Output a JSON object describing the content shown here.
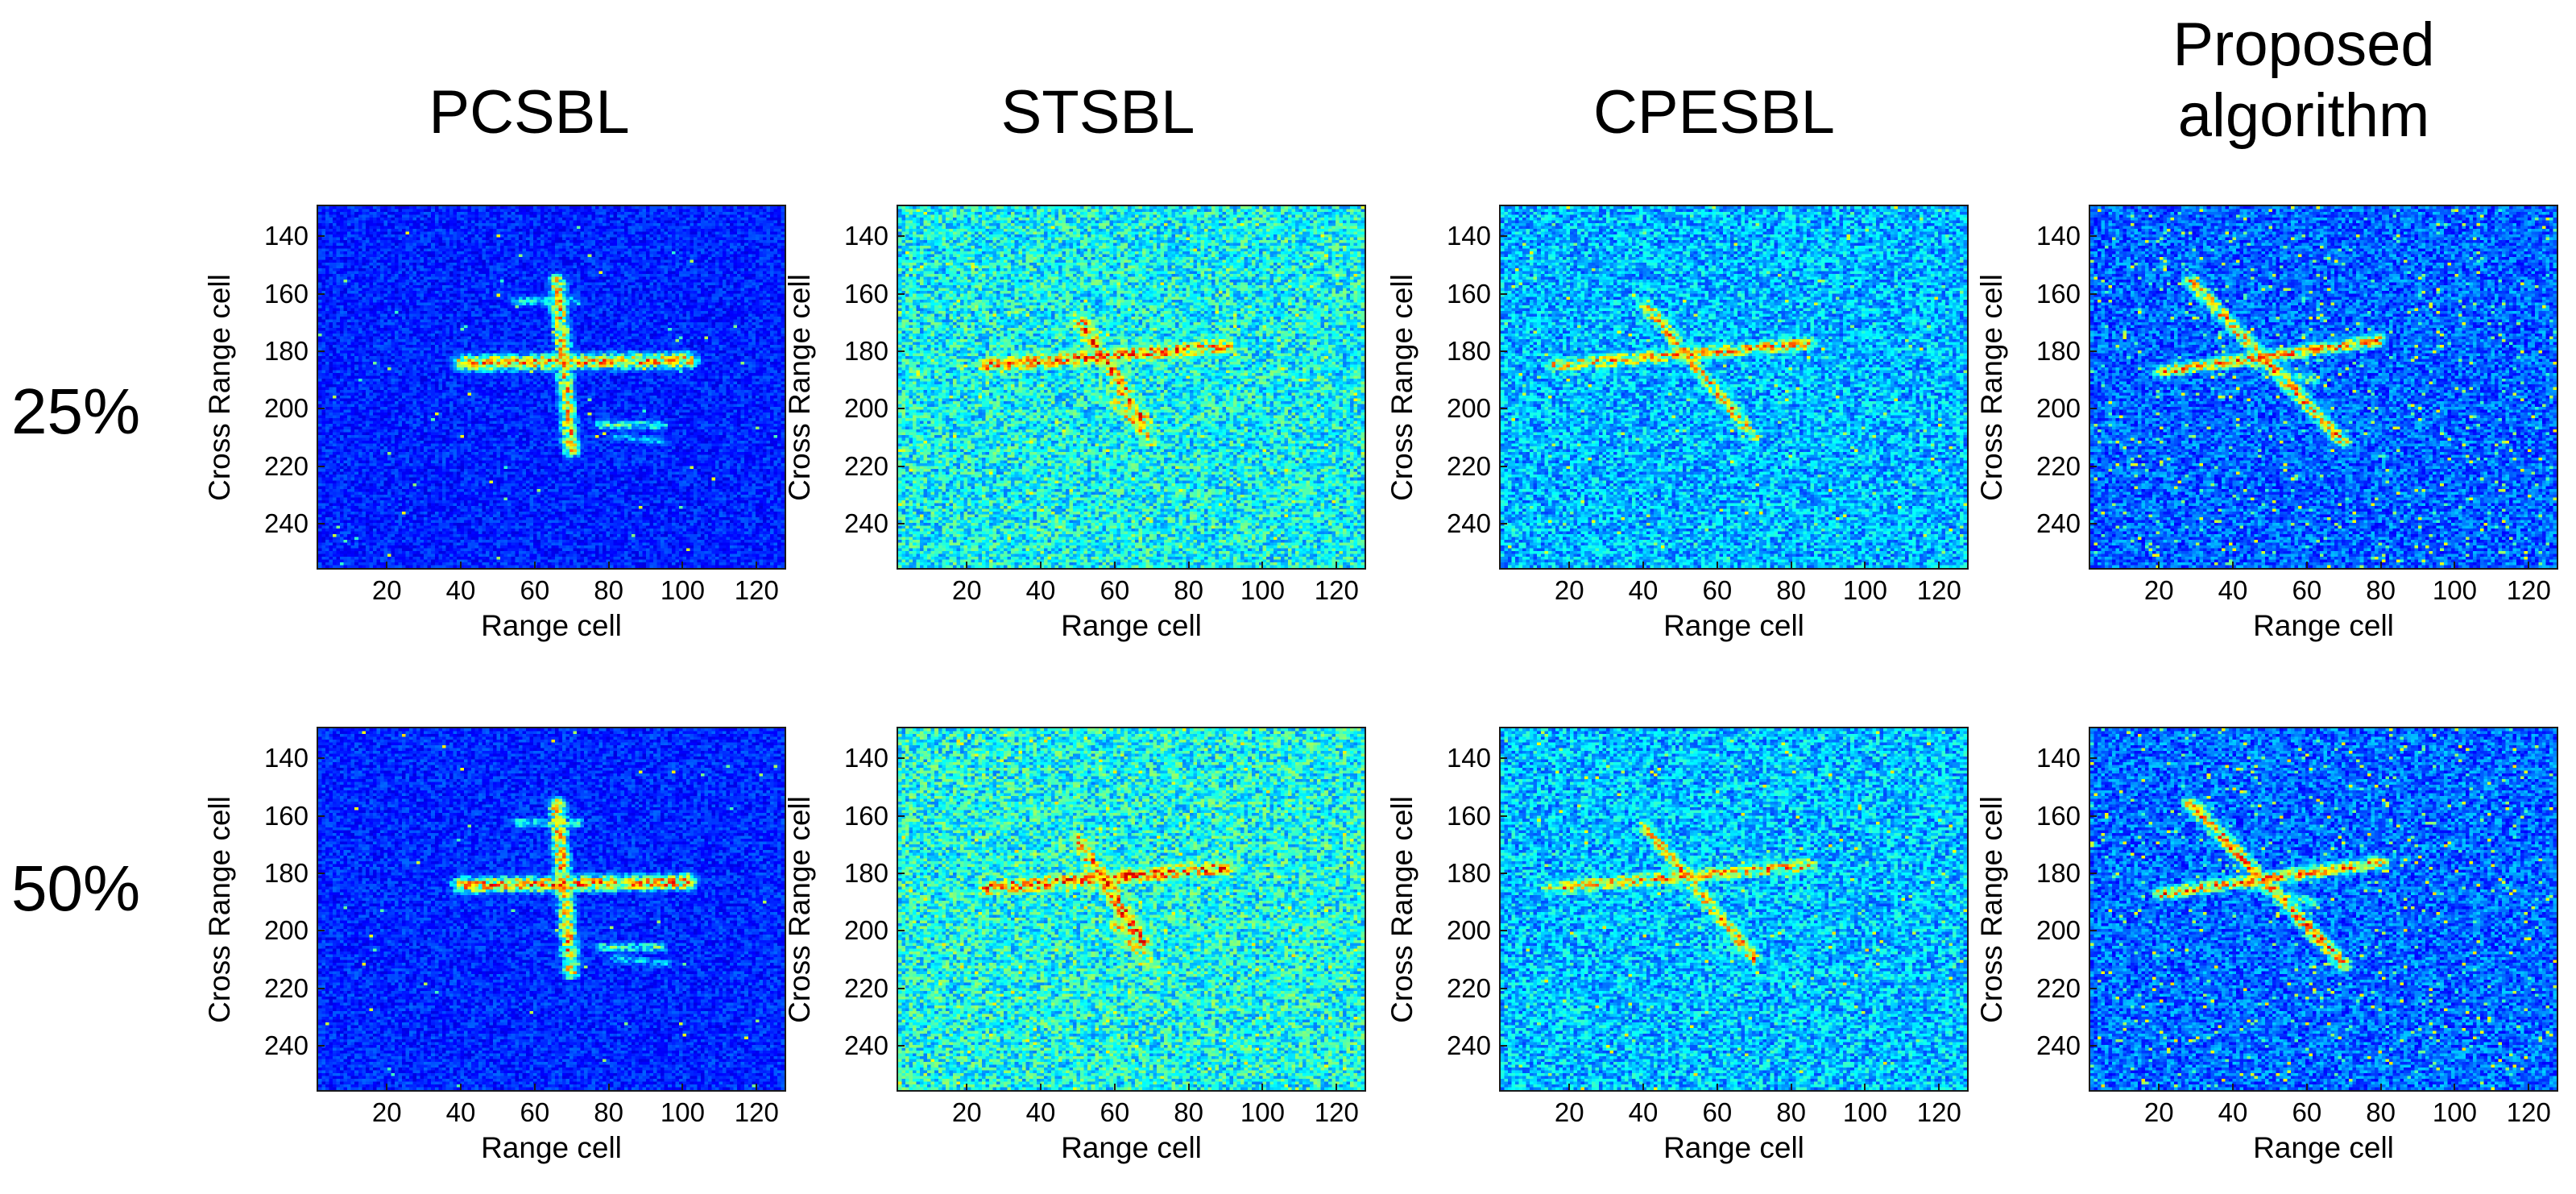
{
  "column_titles": [
    "PCSBL",
    "STSBL",
    "CPESBL",
    "Proposed\nalgorithm"
  ],
  "row_labels": [
    "25%",
    "50%"
  ],
  "chart_data": {
    "type": "heatmap",
    "xlabel": "Range cell",
    "ylabel": "Cross Range cell",
    "xlim": [
      1,
      128
    ],
    "ylim": [
      129,
      256
    ],
    "y_reversed": true,
    "x_ticks": [
      20,
      40,
      60,
      80,
      100,
      120
    ],
    "y_ticks": [
      140,
      160,
      180,
      200,
      220,
      240
    ],
    "colormap": "jet",
    "grid": false
  },
  "colors": {
    "background": "#ffffff",
    "axes": "#1a1a1a"
  }
}
